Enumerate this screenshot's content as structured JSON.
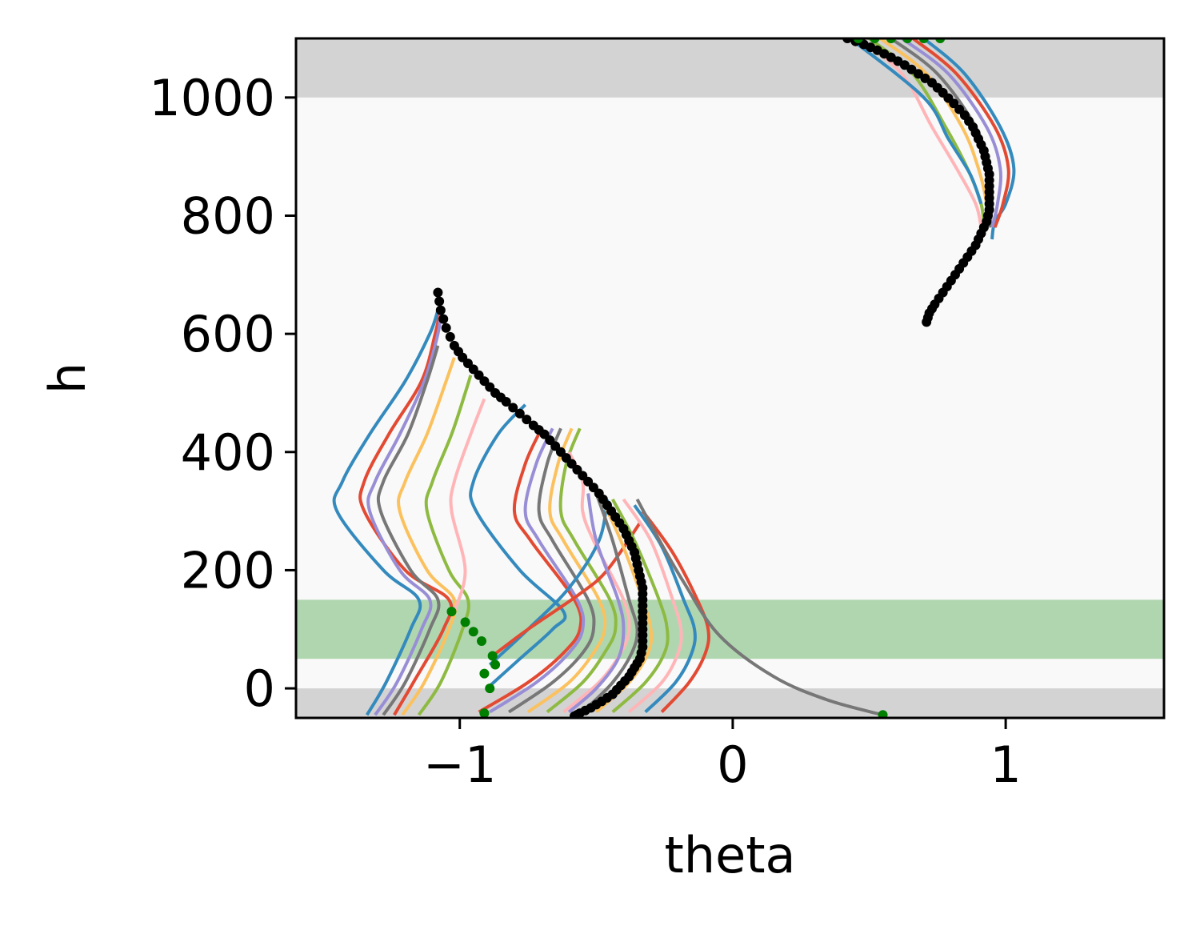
{
  "chart_data": {
    "type": "line",
    "xlabel": "theta",
    "ylabel": "h",
    "xlim": [
      -1.6,
      1.58
    ],
    "ylim": [
      -50,
      1100
    ],
    "x_ticks": [
      {
        "value": -1,
        "label": "−1"
      },
      {
        "value": 0,
        "label": "0"
      },
      {
        "value": 1,
        "label": "1"
      }
    ],
    "y_ticks": [
      {
        "value": 0,
        "label": "0"
      },
      {
        "value": 200,
        "label": "200"
      },
      {
        "value": 400,
        "label": "400"
      },
      {
        "value": 600,
        "label": "600"
      },
      {
        "value": 800,
        "label": "800"
      },
      {
        "value": 1000,
        "label": "1000"
      }
    ],
    "grid": false,
    "legend": "none",
    "background_color": "#f9f9f9",
    "bands": [
      {
        "y0": -50,
        "y1": 0,
        "color": "#d3d3d3"
      },
      {
        "y0": 1000,
        "y1": 1100,
        "color": "#d3d3d3"
      },
      {
        "y0": 50,
        "y1": 150,
        "color": "#b0d6b0"
      }
    ],
    "series_colors": [
      "#348abd",
      "#e24a33",
      "#988ed5",
      "#777777",
      "#fbc15e",
      "#8eba42",
      "#ffb5b8"
    ],
    "lower_trajectories": [
      [
        [
          -1.34,
          -45
        ],
        [
          -1.27,
          10
        ],
        [
          -1.18,
          100
        ],
        [
          -1.15,
          150
        ],
        [
          -1.28,
          200
        ],
        [
          -1.45,
          300
        ],
        [
          -1.43,
          350
        ],
        [
          -1.33,
          430
        ],
        [
          -1.2,
          520
        ],
        [
          -1.11,
          600
        ],
        [
          -1.08,
          640
        ]
      ],
      [
        [
          -1.24,
          -45
        ],
        [
          -1.17,
          10
        ],
        [
          -1.06,
          100
        ],
        [
          -1.04,
          150
        ],
        [
          -1.2,
          200
        ],
        [
          -1.35,
          300
        ],
        [
          -1.35,
          350
        ],
        [
          -1.26,
          430
        ],
        [
          -1.14,
          520
        ],
        [
          -1.09,
          600
        ],
        [
          -1.07,
          645
        ]
      ],
      [
        [
          -1.31,
          -45
        ],
        [
          -1.23,
          10
        ],
        [
          -1.14,
          100
        ],
        [
          -1.11,
          150
        ],
        [
          -1.22,
          200
        ],
        [
          -1.33,
          300
        ],
        [
          -1.31,
          350
        ],
        [
          -1.22,
          430
        ],
        [
          -1.13,
          520
        ],
        [
          -1.08,
          600
        ],
        [
          -1.07,
          640
        ]
      ],
      [
        [
          -1.28,
          -45
        ],
        [
          -1.2,
          10
        ],
        [
          -1.11,
          100
        ],
        [
          -1.08,
          150
        ],
        [
          -1.18,
          200
        ],
        [
          -1.29,
          300
        ],
        [
          -1.28,
          350
        ],
        [
          -1.19,
          430
        ],
        [
          -1.12,
          520
        ],
        [
          -1.08,
          580
        ]
      ],
      [
        [
          -1.21,
          -45
        ],
        [
          -1.13,
          10
        ],
        [
          -1.04,
          100
        ],
        [
          -1.02,
          150
        ],
        [
          -1.12,
          200
        ],
        [
          -1.22,
          300
        ],
        [
          -1.2,
          350
        ],
        [
          -1.12,
          430
        ],
        [
          -1.05,
          520
        ],
        [
          -1.02,
          560
        ]
      ],
      [
        [
          -1.15,
          -45
        ],
        [
          -1.07,
          10
        ],
        [
          -0.99,
          100
        ],
        [
          -0.97,
          150
        ],
        [
          -1.04,
          200
        ],
        [
          -1.12,
          300
        ],
        [
          -1.1,
          350
        ],
        [
          -1.03,
          430
        ],
        [
          -0.98,
          500
        ],
        [
          -0.96,
          530
        ]
      ],
      [
        [
          -1.02,
          130
        ],
        [
          -0.98,
          200
        ],
        [
          -1.03,
          300
        ],
        [
          -1.02,
          350
        ],
        [
          -0.96,
          430
        ],
        [
          -0.91,
          490
        ]
      ],
      [
        [
          -0.9,
          0
        ],
        [
          -0.78,
          50
        ],
        [
          -0.66,
          100
        ],
        [
          -0.62,
          130
        ],
        [
          -0.78,
          200
        ],
        [
          -0.94,
          300
        ],
        [
          -0.95,
          350
        ],
        [
          -0.86,
          430
        ],
        [
          -0.76,
          480
        ]
      ],
      [
        [
          -0.93,
          -40
        ],
        [
          -0.75,
          10
        ],
        [
          -0.62,
          60
        ],
        [
          -0.56,
          100
        ],
        [
          -0.58,
          150
        ],
        [
          -0.74,
          250
        ],
        [
          -0.8,
          300
        ],
        [
          -0.76,
          380
        ],
        [
          -0.7,
          440
        ]
      ],
      [
        [
          -0.89,
          -40
        ],
        [
          -0.72,
          10
        ],
        [
          -0.6,
          60
        ],
        [
          -0.55,
          100
        ],
        [
          -0.57,
          150
        ],
        [
          -0.71,
          250
        ],
        [
          -0.76,
          300
        ],
        [
          -0.72,
          380
        ],
        [
          -0.66,
          440
        ]
      ],
      [
        [
          -0.82,
          -40
        ],
        [
          -0.66,
          10
        ],
        [
          -0.55,
          60
        ],
        [
          -0.51,
          100
        ],
        [
          -0.53,
          150
        ],
        [
          -0.66,
          250
        ],
        [
          -0.71,
          300
        ],
        [
          -0.68,
          380
        ],
        [
          -0.63,
          440
        ]
      ],
      [
        [
          -0.75,
          -40
        ],
        [
          -0.6,
          10
        ],
        [
          -0.51,
          60
        ],
        [
          -0.47,
          100
        ],
        [
          -0.49,
          150
        ],
        [
          -0.62,
          250
        ],
        [
          -0.67,
          300
        ],
        [
          -0.64,
          380
        ],
        [
          -0.59,
          440
        ]
      ],
      [
        [
          -0.68,
          -40
        ],
        [
          -0.55,
          10
        ],
        [
          -0.47,
          60
        ],
        [
          -0.43,
          100
        ],
        [
          -0.45,
          150
        ],
        [
          -0.58,
          250
        ],
        [
          -0.63,
          300
        ],
        [
          -0.61,
          380
        ],
        [
          -0.56,
          440
        ]
      ],
      [
        [
          -0.62,
          -40
        ],
        [
          -0.49,
          10
        ],
        [
          -0.41,
          60
        ],
        [
          -0.38,
          100
        ],
        [
          -0.4,
          150
        ],
        [
          -0.51,
          250
        ],
        [
          -0.55,
          300
        ],
        [
          -0.55,
          350
        ],
        [
          -0.6,
          400
        ]
      ],
      [
        [
          -0.89,
          40
        ],
        [
          -0.75,
          100
        ],
        [
          -0.6,
          170
        ],
        [
          -0.49,
          250
        ],
        [
          -0.46,
          320
        ]
      ],
      [
        [
          -0.88,
          55
        ],
        [
          -0.75,
          100
        ],
        [
          -0.56,
          160
        ],
        [
          -0.46,
          200
        ],
        [
          -0.34,
          280
        ]
      ],
      [
        [
          -0.6,
          -40
        ],
        [
          -0.5,
          0
        ],
        [
          -0.42,
          50
        ],
        [
          -0.4,
          100
        ],
        [
          -0.42,
          150
        ],
        [
          -0.5,
          250
        ],
        [
          -0.53,
          330
        ]
      ],
      [
        [
          -0.55,
          -40
        ],
        [
          -0.44,
          10
        ],
        [
          -0.37,
          60
        ],
        [
          -0.35,
          100
        ],
        [
          -0.38,
          150
        ],
        [
          -0.44,
          250
        ],
        [
          -0.5,
          330
        ]
      ],
      [
        [
          -0.5,
          -40
        ],
        [
          -0.38,
          10
        ],
        [
          -0.31,
          60
        ],
        [
          -0.3,
          100
        ],
        [
          -0.33,
          150
        ],
        [
          -0.41,
          250
        ],
        [
          -0.48,
          320
        ]
      ],
      [
        [
          -0.44,
          -40
        ],
        [
          -0.32,
          10
        ],
        [
          -0.25,
          60
        ],
        [
          -0.24,
          100
        ],
        [
          -0.27,
          150
        ],
        [
          -0.36,
          250
        ],
        [
          -0.44,
          320
        ]
      ],
      [
        [
          -0.38,
          -40
        ],
        [
          -0.26,
          10
        ],
        [
          -0.2,
          60
        ],
        [
          -0.19,
          100
        ],
        [
          -0.22,
          150
        ],
        [
          -0.3,
          250
        ],
        [
          -0.4,
          320
        ]
      ],
      [
        [
          -0.32,
          -40
        ],
        [
          -0.21,
          10
        ],
        [
          -0.15,
          60
        ],
        [
          -0.14,
          100
        ],
        [
          -0.18,
          150
        ],
        [
          -0.26,
          240
        ],
        [
          -0.36,
          310
        ]
      ],
      [
        [
          -0.26,
          -40
        ],
        [
          -0.16,
          10
        ],
        [
          -0.1,
          60
        ],
        [
          -0.09,
          100
        ],
        [
          -0.13,
          150
        ],
        [
          -0.22,
          230
        ],
        [
          -0.33,
          300
        ]
      ],
      [
        [
          0.55,
          -45
        ],
        [
          0.35,
          -20
        ],
        [
          0.15,
          20
        ],
        [
          -0.05,
          90
        ],
        [
          -0.18,
          180
        ],
        [
          -0.28,
          260
        ],
        [
          -0.35,
          320
        ]
      ]
    ],
    "upper_trajectories": [
      [
        [
          0.7,
          1100
        ],
        [
          0.85,
          1040
        ],
        [
          0.98,
          950
        ],
        [
          1.03,
          880
        ],
        [
          1.0,
          820
        ],
        [
          0.96,
          790
        ],
        [
          0.95,
          760
        ]
      ],
      [
        [
          0.66,
          1100
        ],
        [
          0.82,
          1040
        ],
        [
          0.96,
          950
        ],
        [
          1.01,
          880
        ],
        [
          0.99,
          820
        ],
        [
          0.96,
          780
        ]
      ],
      [
        [
          0.62,
          1100
        ],
        [
          0.79,
          1040
        ],
        [
          0.93,
          950
        ],
        [
          0.98,
          880
        ],
        [
          0.97,
          820
        ],
        [
          0.95,
          780
        ]
      ],
      [
        [
          0.58,
          1100
        ],
        [
          0.75,
          1040
        ],
        [
          0.89,
          950
        ],
        [
          0.94,
          880
        ],
        [
          0.95,
          820
        ],
        [
          0.94,
          780
        ]
      ],
      [
        [
          0.54,
          1100
        ],
        [
          0.71,
          1040
        ],
        [
          0.84,
          950
        ],
        [
          0.9,
          880
        ],
        [
          0.93,
          820
        ],
        [
          0.93,
          780
        ]
      ],
      [
        [
          0.5,
          1100
        ],
        [
          0.66,
          1040
        ],
        [
          0.78,
          950
        ],
        [
          0.86,
          880
        ],
        [
          0.91,
          820
        ],
        [
          0.92,
          780
        ]
      ],
      [
        [
          0.46,
          1100
        ],
        [
          0.62,
          1040
        ],
        [
          0.73,
          950
        ],
        [
          0.82,
          880
        ],
        [
          0.89,
          820
        ],
        [
          0.91,
          780
        ]
      ],
      [
        [
          0.43,
          1100
        ],
        [
          0.7,
          1000
        ],
        [
          0.79,
          930
        ],
        [
          0.87,
          870
        ],
        [
          0.91,
          820
        ]
      ]
    ],
    "black_trajectory_lower": [
      [
        -1.08,
        670
      ],
      [
        -1.07,
        640
      ],
      [
        -1.05,
        610
      ],
      [
        -1.02,
        580
      ],
      [
        -0.99,
        560
      ],
      [
        -0.95,
        540
      ],
      [
        -0.91,
        520
      ],
      [
        -0.87,
        500
      ],
      [
        -0.83,
        485
      ],
      [
        -0.78,
        465
      ],
      [
        -0.73,
        445
      ],
      [
        -0.69,
        430
      ],
      [
        -0.65,
        410
      ],
      [
        -0.61,
        390
      ],
      [
        -0.57,
        370
      ],
      [
        -0.53,
        350
      ],
      [
        -0.49,
        330
      ],
      [
        -0.46,
        310
      ],
      [
        -0.43,
        290
      ],
      [
        -0.4,
        270
      ],
      [
        -0.38,
        250
      ],
      [
        -0.36,
        230
      ],
      [
        -0.35,
        210
      ],
      [
        -0.34,
        190
      ],
      [
        -0.33,
        170
      ],
      [
        -0.33,
        150
      ],
      [
        -0.33,
        130
      ],
      [
        -0.33,
        110
      ],
      [
        -0.33,
        90
      ],
      [
        -0.33,
        70
      ],
      [
        -0.34,
        50
      ],
      [
        -0.36,
        35
      ],
      [
        -0.38,
        20
      ],
      [
        -0.41,
        5
      ],
      [
        -0.44,
        -10
      ],
      [
        -0.48,
        -22
      ],
      [
        -0.52,
        -33
      ],
      [
        -0.56,
        -42
      ],
      [
        -0.58,
        -47
      ]
    ],
    "black_trajectory_upper": [
      [
        0.42,
        1100
      ],
      [
        0.48,
        1090
      ],
      [
        0.53,
        1080
      ],
      [
        0.58,
        1068
      ],
      [
        0.63,
        1055
      ],
      [
        0.68,
        1040
      ],
      [
        0.73,
        1025
      ],
      [
        0.77,
        1008
      ],
      [
        0.81,
        990
      ],
      [
        0.85,
        970
      ],
      [
        0.88,
        950
      ],
      [
        0.9,
        930
      ],
      [
        0.92,
        910
      ],
      [
        0.93,
        890
      ],
      [
        0.94,
        870
      ],
      [
        0.94,
        850
      ],
      [
        0.94,
        830
      ],
      [
        0.94,
        810
      ],
      [
        0.93,
        790
      ],
      [
        0.91,
        770
      ],
      [
        0.89,
        750
      ],
      [
        0.86,
        730
      ],
      [
        0.83,
        710
      ],
      [
        0.8,
        690
      ],
      [
        0.77,
        670
      ],
      [
        0.74,
        650
      ],
      [
        0.72,
        635
      ],
      [
        0.71,
        620
      ]
    ],
    "green_markers": [
      [
        -1.03,
        130
      ],
      [
        -0.98,
        112
      ],
      [
        -0.95,
        96
      ],
      [
        -0.92,
        80
      ],
      [
        -0.88,
        55
      ],
      [
        -0.87,
        40
      ],
      [
        -0.91,
        25
      ],
      [
        -0.89,
        0
      ],
      [
        -0.91,
        -42
      ],
      [
        0.55,
        -45
      ],
      [
        0.46,
        1100
      ],
      [
        0.52,
        1100
      ],
      [
        0.58,
        1100
      ],
      [
        0.64,
        1100
      ],
      [
        0.7,
        1100
      ],
      [
        0.76,
        1100
      ]
    ]
  }
}
